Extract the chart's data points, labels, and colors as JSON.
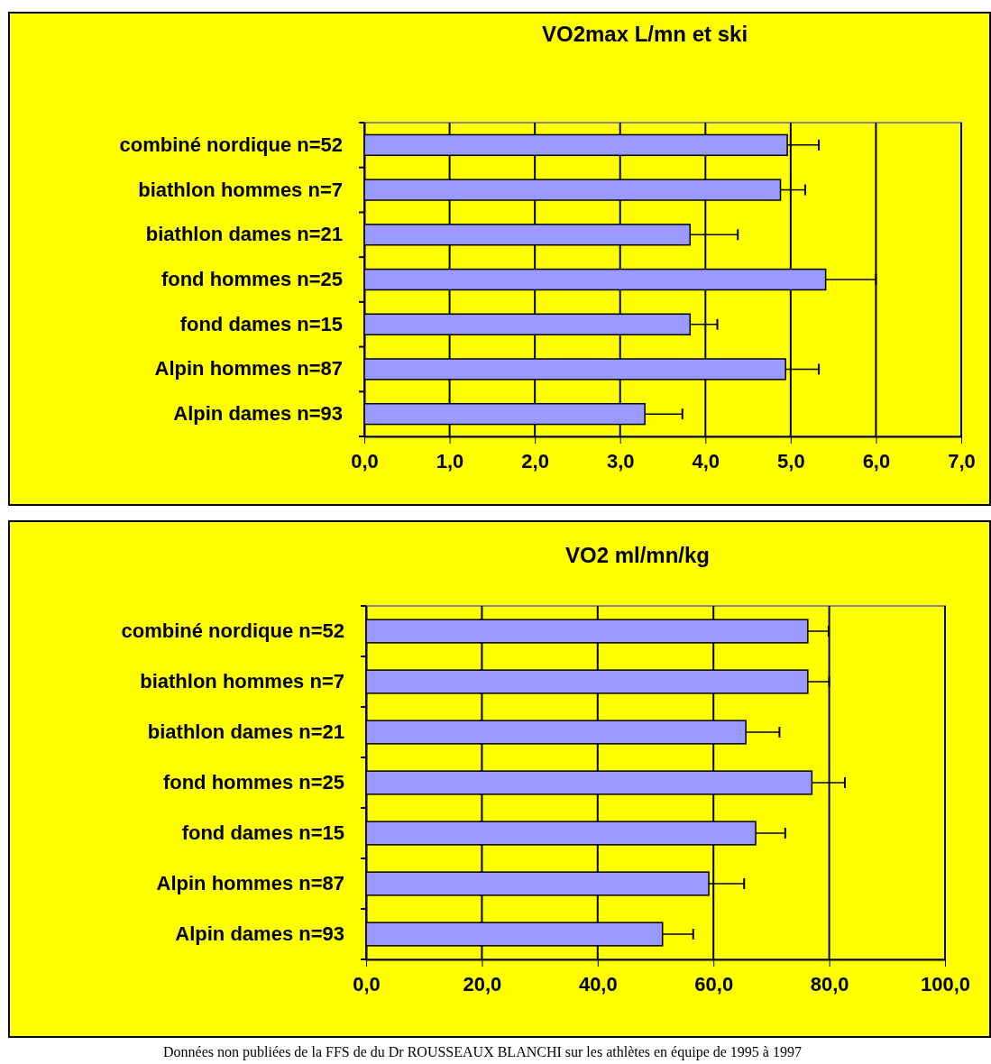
{
  "chart_data": [
    {
      "type": "bar",
      "orientation": "horizontal",
      "title": "VO2max L/mn et ski",
      "categories": [
        "combiné nordique n=52",
        "biathlon hommes n=7",
        "biathlon dames n=21",
        "fond hommes n=25",
        "fond dames n=15",
        "Alpin hommes n=87",
        "Alpin dames n=93"
      ],
      "values": [
        4.96,
        4.88,
        3.82,
        5.41,
        3.82,
        4.94,
        3.29
      ],
      "errors": [
        [
          4.96,
          5.33
        ],
        [
          4.88,
          5.17
        ],
        [
          3.82,
          4.38
        ],
        [
          5.41,
          6.0
        ],
        [
          3.82,
          4.14
        ],
        [
          4.94,
          5.33
        ],
        [
          3.29,
          3.73
        ]
      ],
      "color": "#9999ff",
      "xlim": [
        0,
        7
      ],
      "xticks": [
        {
          "value": 0,
          "label": "0,0"
        },
        {
          "value": 1,
          "label": "1,0"
        },
        {
          "value": 2,
          "label": "2,0"
        },
        {
          "value": 3,
          "label": "3,0"
        },
        {
          "value": 4,
          "label": "4,0"
        },
        {
          "value": 5,
          "label": "5,0"
        },
        {
          "value": 6,
          "label": "6,0"
        },
        {
          "value": 7,
          "label": "7,0"
        }
      ],
      "grid": "x"
    },
    {
      "type": "bar",
      "orientation": "horizontal",
      "title": "VO2 ml/mn/kg",
      "categories": [
        "combiné nordique n=52",
        "biathlon hommes n=7",
        "biathlon dames n=21",
        "fond hommes n=25",
        "fond dames n=15",
        "Alpin hommes n=87",
        "Alpin dames n=93"
      ],
      "values": [
        76.3,
        76.3,
        65.6,
        77.0,
        67.3,
        59.2,
        51.2
      ],
      "errors": [
        [
          76.3,
          79.9
        ],
        [
          76.3,
          80.0
        ],
        [
          65.6,
          71.4
        ],
        [
          77.0,
          82.7
        ],
        [
          67.3,
          72.4
        ],
        [
          59.2,
          65.3
        ],
        [
          51.2,
          56.5
        ]
      ],
      "color": "#9999ff",
      "xlim": [
        0,
        100
      ],
      "xticks": [
        {
          "value": 0,
          "label": "0,0"
        },
        {
          "value": 20,
          "label": "20,0"
        },
        {
          "value": 40,
          "label": "40,0"
        },
        {
          "value": 60,
          "label": "60,0"
        },
        {
          "value": 80,
          "label": "80,0"
        },
        {
          "value": 100,
          "label": "100,0"
        }
      ],
      "grid": "x",
      "annotations": [
        "Données non publiées de la FFS de du Dr ROUSSEAUX BLANCHI sur les athlètes en équipe de 1995 à 1997"
      ]
    }
  ]
}
